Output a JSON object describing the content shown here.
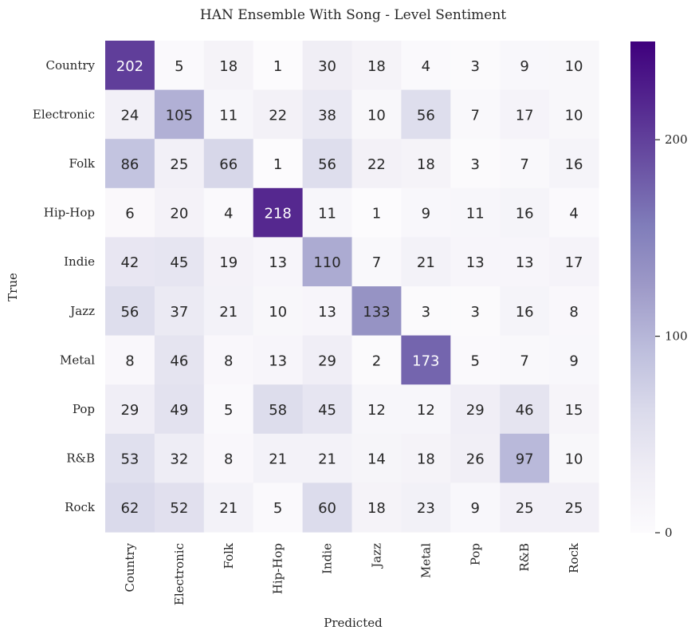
{
  "chart_data": {
    "type": "heatmap",
    "title": "HAN Ensemble With Song - Level Sentiment",
    "xlabel": "Predicted",
    "ylabel": "True",
    "x_categories": [
      "Country",
      "Electronic",
      "Folk",
      "Hip-Hop",
      "Indie",
      "Jazz",
      "Metal",
      "Pop",
      "R&B",
      "Rock"
    ],
    "y_categories": [
      "Country",
      "Electronic",
      "Folk",
      "Hip-Hop",
      "Indie",
      "Jazz",
      "Metal",
      "Pop",
      "R&B",
      "Rock"
    ],
    "values": [
      [
        202,
        5,
        18,
        1,
        30,
        18,
        4,
        3,
        9,
        10
      ],
      [
        24,
        105,
        11,
        22,
        38,
        10,
        56,
        7,
        17,
        10
      ],
      [
        86,
        25,
        66,
        1,
        56,
        22,
        18,
        3,
        7,
        16
      ],
      [
        6,
        20,
        4,
        218,
        11,
        1,
        9,
        11,
        16,
        4
      ],
      [
        42,
        45,
        19,
        13,
        110,
        7,
        21,
        13,
        13,
        17
      ],
      [
        56,
        37,
        21,
        10,
        13,
        133,
        3,
        3,
        16,
        8
      ],
      [
        8,
        46,
        8,
        13,
        29,
        2,
        173,
        5,
        7,
        9
      ],
      [
        29,
        49,
        5,
        58,
        45,
        12,
        12,
        29,
        46,
        15
      ],
      [
        53,
        32,
        8,
        21,
        21,
        14,
        18,
        26,
        97,
        10
      ],
      [
        62,
        52,
        21,
        5,
        60,
        18,
        23,
        9,
        25,
        25
      ]
    ],
    "colormap": "Purples",
    "vmin": 0,
    "vmax": 250,
    "colorbar_ticks": [
      0,
      100,
      200
    ],
    "colorbar_tick_labels": [
      "0",
      "100",
      "200"
    ],
    "annotations": "cell values shown in each cell"
  }
}
